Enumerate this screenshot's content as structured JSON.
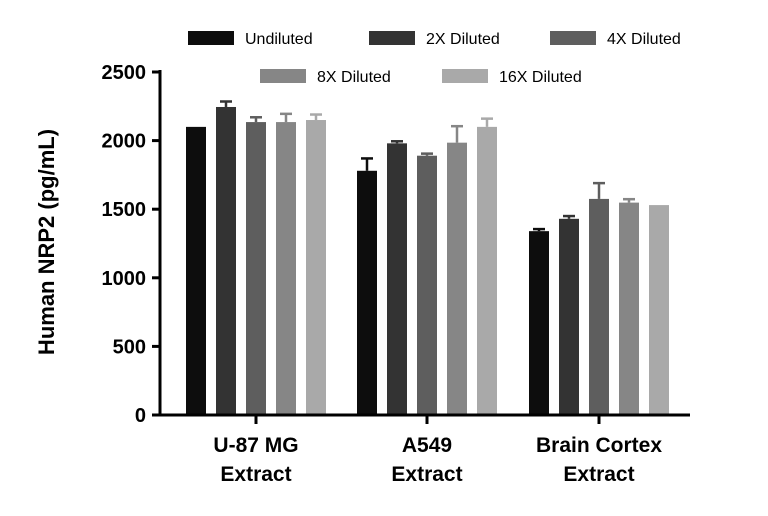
{
  "chart_data": {
    "type": "bar",
    "title": "",
    "xlabel": "",
    "ylabel": "Human NRP2 (pg/mL)",
    "ylim": [
      0,
      2500
    ],
    "yticks": [
      0,
      500,
      1000,
      1500,
      2000,
      2500
    ],
    "categories": [
      [
        "U-87 MG",
        "Extract"
      ],
      [
        "A549",
        "Extract"
      ],
      [
        "Brain Cortex",
        "Extract"
      ]
    ],
    "legend_position": "top",
    "series": [
      {
        "name": "Undiluted",
        "color": "#0d0d0d",
        "values": [
          2100,
          1780,
          1340
        ],
        "errors": [
          0,
          90,
          15
        ]
      },
      {
        "name": "2X Diluted",
        "color": "#333333",
        "values": [
          2245,
          1980,
          1430
        ],
        "errors": [
          40,
          15,
          20
        ]
      },
      {
        "name": "4X Diluted",
        "color": "#5e5e5e",
        "values": [
          2135,
          1890,
          1575
        ],
        "errors": [
          35,
          15,
          115
        ]
      },
      {
        "name": "8X Diluted",
        "color": "#868686",
        "values": [
          2135,
          1985,
          1548
        ],
        "errors": [
          60,
          120,
          25
        ]
      },
      {
        "name": "16X Diluted",
        "color": "#a9a9a9",
        "values": [
          2150,
          2100,
          1530
        ],
        "errors": [
          40,
          60,
          0
        ]
      }
    ]
  }
}
